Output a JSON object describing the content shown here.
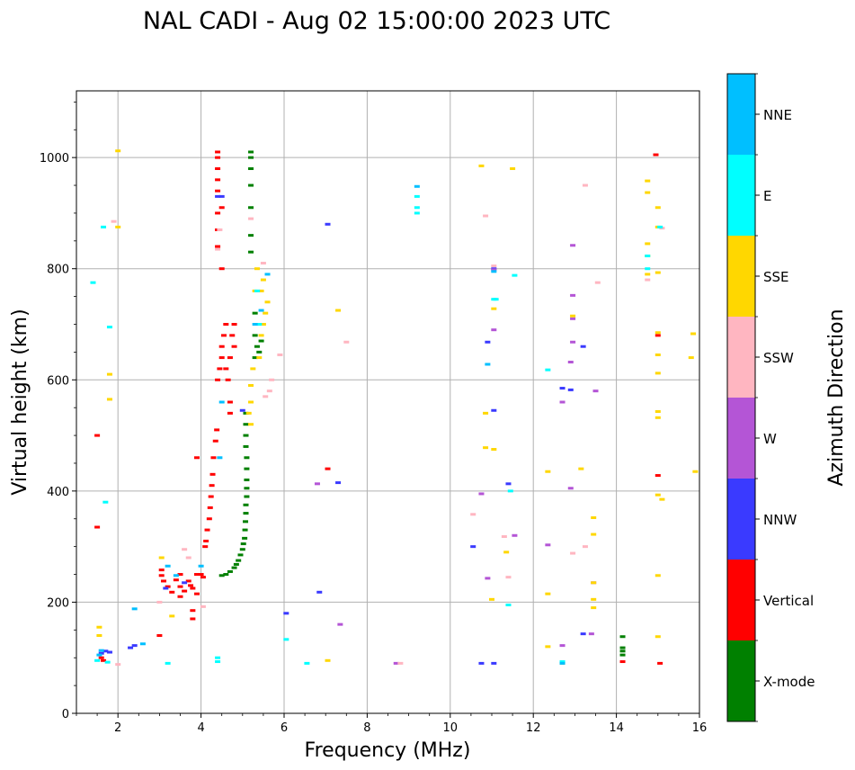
{
  "chart_data": {
    "type": "scatter",
    "title": "NAL CADI - Aug 02 15:00:00 2023 UTC",
    "xlabel": "Frequency (MHz)",
    "ylabel": "Virtual height (km)",
    "xlim": [
      1,
      16
    ],
    "ylim": [
      0,
      1120
    ],
    "xticks": [
      2,
      4,
      6,
      8,
      10,
      12,
      14,
      16
    ],
    "yticks": [
      0,
      200,
      400,
      600,
      800,
      1000
    ],
    "grid": true,
    "colorbar": {
      "label": "Azimuth Direction",
      "categories": [
        {
          "name": "X-mode",
          "color": "#008000"
        },
        {
          "name": "Vertical",
          "color": "#ff0000"
        },
        {
          "name": "NNW",
          "color": "#3a3aff"
        },
        {
          "name": "W",
          "color": "#b455d6"
        },
        {
          "name": "SSW",
          "color": "#ffb6c1"
        },
        {
          "name": "SSE",
          "color": "#ffd700"
        },
        {
          "name": "E",
          "color": "#00ffff"
        },
        {
          "name": "NNE",
          "color": "#00bfff"
        }
      ]
    },
    "series": [
      {
        "name": "X-mode",
        "points": [
          [
            4.5,
            248
          ],
          [
            4.6,
            250
          ],
          [
            4.7,
            255
          ],
          [
            4.8,
            262
          ],
          [
            4.85,
            268
          ],
          [
            4.9,
            275
          ],
          [
            4.95,
            285
          ],
          [
            5.0,
            295
          ],
          [
            5.02,
            305
          ],
          [
            5.05,
            315
          ],
          [
            5.06,
            330
          ],
          [
            5.07,
            345
          ],
          [
            5.08,
            360
          ],
          [
            5.08,
            375
          ],
          [
            5.1,
            390
          ],
          [
            5.1,
            405
          ],
          [
            5.1,
            420
          ],
          [
            5.1,
            440
          ],
          [
            5.1,
            460
          ],
          [
            5.08,
            480
          ],
          [
            5.08,
            500
          ],
          [
            5.08,
            520
          ],
          [
            5.08,
            540
          ],
          [
            5.3,
            640
          ],
          [
            5.35,
            660
          ],
          [
            5.3,
            680
          ],
          [
            5.4,
            700
          ],
          [
            5.3,
            720
          ],
          [
            5.2,
            830
          ],
          [
            5.2,
            860
          ],
          [
            5.2,
            910
          ],
          [
            5.2,
            950
          ],
          [
            5.2,
            980
          ],
          [
            5.2,
            1000
          ],
          [
            5.2,
            1010
          ],
          [
            14.15,
            138
          ],
          [
            14.15,
            118
          ],
          [
            14.15,
            112
          ],
          [
            14.15,
            105
          ],
          [
            5.4,
            650
          ],
          [
            5.45,
            670
          ]
        ]
      },
      {
        "name": "Vertical",
        "points": [
          [
            1.5,
            500
          ],
          [
            1.5,
            335
          ],
          [
            1.6,
            100
          ],
          [
            1.65,
            95
          ],
          [
            3.0,
            140
          ],
          [
            3.05,
            258
          ],
          [
            3.05,
            248
          ],
          [
            3.1,
            238
          ],
          [
            3.2,
            228
          ],
          [
            3.3,
            218
          ],
          [
            3.4,
            240
          ],
          [
            3.5,
            250
          ],
          [
            3.5,
            228
          ],
          [
            3.6,
            220
          ],
          [
            3.7,
            238
          ],
          [
            3.75,
            230
          ],
          [
            3.8,
            225
          ],
          [
            3.9,
            250
          ],
          [
            3.9,
            215
          ],
          [
            3.5,
            210
          ],
          [
            3.8,
            185
          ],
          [
            3.8,
            170
          ],
          [
            4.0,
            250
          ],
          [
            4.05,
            245
          ],
          [
            4.1,
            300
          ],
          [
            4.12,
            310
          ],
          [
            4.15,
            330
          ],
          [
            4.2,
            350
          ],
          [
            4.22,
            370
          ],
          [
            4.24,
            390
          ],
          [
            4.26,
            410
          ],
          [
            4.28,
            430
          ],
          [
            4.3,
            460
          ],
          [
            4.35,
            490
          ],
          [
            4.38,
            510
          ],
          [
            4.4,
            600
          ],
          [
            4.45,
            620
          ],
          [
            4.5,
            640
          ],
          [
            4.5,
            660
          ],
          [
            4.55,
            680
          ],
          [
            4.6,
            620
          ],
          [
            4.65,
            600
          ],
          [
            4.7,
            560
          ],
          [
            4.7,
            540
          ],
          [
            4.6,
            700
          ],
          [
            4.7,
            640
          ],
          [
            4.75,
            680
          ],
          [
            4.8,
            660
          ],
          [
            4.8,
            700
          ],
          [
            4.5,
            800
          ],
          [
            4.4,
            840
          ],
          [
            4.4,
            870
          ],
          [
            4.4,
            900
          ],
          [
            4.4,
            940
          ],
          [
            4.4,
            960
          ],
          [
            4.4,
            980
          ],
          [
            4.4,
            1000
          ],
          [
            4.4,
            1010
          ],
          [
            4.5,
            910
          ],
          [
            3.9,
            460
          ],
          [
            7.05,
            440
          ],
          [
            14.15,
            93
          ],
          [
            14.95,
            1005
          ],
          [
            15.0,
            428
          ],
          [
            15.0,
            680
          ],
          [
            15.05,
            90
          ]
        ]
      },
      {
        "name": "NNW",
        "points": [
          [
            1.6,
            108
          ],
          [
            1.7,
            112
          ],
          [
            1.8,
            110
          ],
          [
            2.3,
            118
          ],
          [
            2.4,
            122
          ],
          [
            3.15,
            225
          ],
          [
            3.6,
            235
          ],
          [
            4.4,
            930
          ],
          [
            4.5,
            930
          ],
          [
            5.0,
            545
          ],
          [
            6.05,
            180
          ],
          [
            6.85,
            218
          ],
          [
            7.05,
            880
          ],
          [
            7.3,
            415
          ],
          [
            10.55,
            300
          ],
          [
            10.75,
            90
          ],
          [
            10.9,
            668
          ],
          [
            11.05,
            90
          ],
          [
            11.05,
            800
          ],
          [
            11.05,
            545
          ],
          [
            11.4,
            413
          ],
          [
            12.7,
            585
          ],
          [
            12.9,
            582
          ],
          [
            13.2,
            660
          ],
          [
            13.2,
            143
          ]
        ]
      },
      {
        "name": "W",
        "points": [
          [
            6.8,
            413
          ],
          [
            7.35,
            160
          ],
          [
            8.7,
            90
          ],
          [
            10.75,
            395
          ],
          [
            10.9,
            243
          ],
          [
            11.05,
            690
          ],
          [
            11.05,
            798
          ],
          [
            11.55,
            320
          ],
          [
            12.35,
            303
          ],
          [
            12.7,
            122
          ],
          [
            12.7,
            560
          ],
          [
            12.9,
            405
          ],
          [
            12.9,
            632
          ],
          [
            12.95,
            668
          ],
          [
            12.95,
            752
          ],
          [
            12.95,
            842
          ],
          [
            12.95,
            710
          ],
          [
            13.5,
            580
          ],
          [
            13.4,
            143
          ],
          [
            13.45,
            235
          ]
        ]
      },
      {
        "name": "SSW",
        "points": [
          [
            1.9,
            885
          ],
          [
            2.0,
            88
          ],
          [
            3.0,
            200
          ],
          [
            3.6,
            295
          ],
          [
            3.7,
            280
          ],
          [
            4.05,
            192
          ],
          [
            4.45,
            870
          ],
          [
            4.4,
            835
          ],
          [
            5.2,
            890
          ],
          [
            5.5,
            810
          ],
          [
            5.55,
            570
          ],
          [
            5.7,
            600
          ],
          [
            5.65,
            580
          ],
          [
            5.9,
            645
          ],
          [
            7.5,
            668
          ],
          [
            8.8,
            90
          ],
          [
            10.55,
            358
          ],
          [
            10.85,
            895
          ],
          [
            11.05,
            805
          ],
          [
            11.3,
            318
          ],
          [
            11.4,
            245
          ],
          [
            12.95,
            288
          ],
          [
            13.25,
            300
          ],
          [
            13.25,
            950
          ],
          [
            13.55,
            775
          ],
          [
            14.75,
            780
          ],
          [
            15.1,
            873
          ]
        ]
      },
      {
        "name": "SSE",
        "points": [
          [
            1.55,
            140
          ],
          [
            1.55,
            155
          ],
          [
            1.8,
            610
          ],
          [
            1.8,
            565
          ],
          [
            2.0,
            875
          ],
          [
            2.0,
            1012
          ],
          [
            3.05,
            280
          ],
          [
            3.3,
            175
          ],
          [
            5.25,
            620
          ],
          [
            5.4,
            640
          ],
          [
            5.45,
            680
          ],
          [
            5.5,
            700
          ],
          [
            5.55,
            720
          ],
          [
            5.6,
            740
          ],
          [
            5.45,
            760
          ],
          [
            5.5,
            780
          ],
          [
            5.35,
            800
          ],
          [
            5.3,
            760
          ],
          [
            5.2,
            560
          ],
          [
            5.2,
            590
          ],
          [
            5.15,
            540
          ],
          [
            5.2,
            520
          ],
          [
            7.05,
            95
          ],
          [
            7.3,
            725
          ],
          [
            10.75,
            985
          ],
          [
            10.85,
            540
          ],
          [
            10.85,
            478
          ],
          [
            11.0,
            205
          ],
          [
            11.05,
            475
          ],
          [
            11.05,
            728
          ],
          [
            11.35,
            290
          ],
          [
            11.5,
            980
          ],
          [
            12.35,
            215
          ],
          [
            12.35,
            435
          ],
          [
            12.35,
            120
          ],
          [
            12.7,
            90
          ],
          [
            12.95,
            715
          ],
          [
            13.15,
            440
          ],
          [
            13.45,
            352
          ],
          [
            13.45,
            322
          ],
          [
            13.45,
            235
          ],
          [
            13.45,
            205
          ],
          [
            13.45,
            190
          ],
          [
            14.75,
            958
          ],
          [
            14.75,
            937
          ],
          [
            14.75,
            845
          ],
          [
            14.75,
            823
          ],
          [
            14.75,
            790
          ],
          [
            15.0,
            910
          ],
          [
            15.0,
            875
          ],
          [
            15.0,
            793
          ],
          [
            15.0,
            685
          ],
          [
            15.0,
            645
          ],
          [
            15.0,
            612
          ],
          [
            15.0,
            543
          ],
          [
            15.0,
            532
          ],
          [
            15.0,
            393
          ],
          [
            15.1,
            385
          ],
          [
            15.0,
            248
          ],
          [
            15.0,
            138
          ],
          [
            15.85,
            683
          ],
          [
            15.8,
            640
          ],
          [
            15.9,
            435
          ]
        ]
      },
      {
        "name": "E",
        "points": [
          [
            1.4,
            775
          ],
          [
            1.65,
            875
          ],
          [
            1.8,
            695
          ],
          [
            1.7,
            380
          ],
          [
            1.5,
            95
          ],
          [
            1.75,
            92
          ],
          [
            3.2,
            90
          ],
          [
            4.4,
            93
          ],
          [
            4.4,
            100
          ],
          [
            5.35,
            760
          ],
          [
            5.4,
            700
          ],
          [
            6.05,
            133
          ],
          [
            6.55,
            90
          ],
          [
            9.2,
            910
          ],
          [
            9.2,
            900
          ],
          [
            9.2,
            930
          ],
          [
            11.1,
            745
          ],
          [
            11.05,
            745
          ],
          [
            11.4,
            195
          ],
          [
            11.45,
            400
          ],
          [
            11.55,
            788
          ],
          [
            12.35,
            618
          ],
          [
            12.7,
            93
          ],
          [
            14.75,
            800
          ],
          [
            14.75,
            823
          ],
          [
            15.05,
            875
          ]
        ]
      },
      {
        "name": "NNE",
        "points": [
          [
            1.55,
            105
          ],
          [
            1.6,
            113
          ],
          [
            2.4,
            188
          ],
          [
            2.6,
            125
          ],
          [
            3.2,
            265
          ],
          [
            3.4,
            248
          ],
          [
            4.0,
            265
          ],
          [
            4.45,
            460
          ],
          [
            4.5,
            560
          ],
          [
            5.3,
            700
          ],
          [
            5.45,
            725
          ],
          [
            5.6,
            790
          ],
          [
            9.2,
            948
          ],
          [
            10.9,
            628
          ],
          [
            11.05,
            795
          ],
          [
            12.7,
            90
          ]
        ]
      }
    ]
  }
}
